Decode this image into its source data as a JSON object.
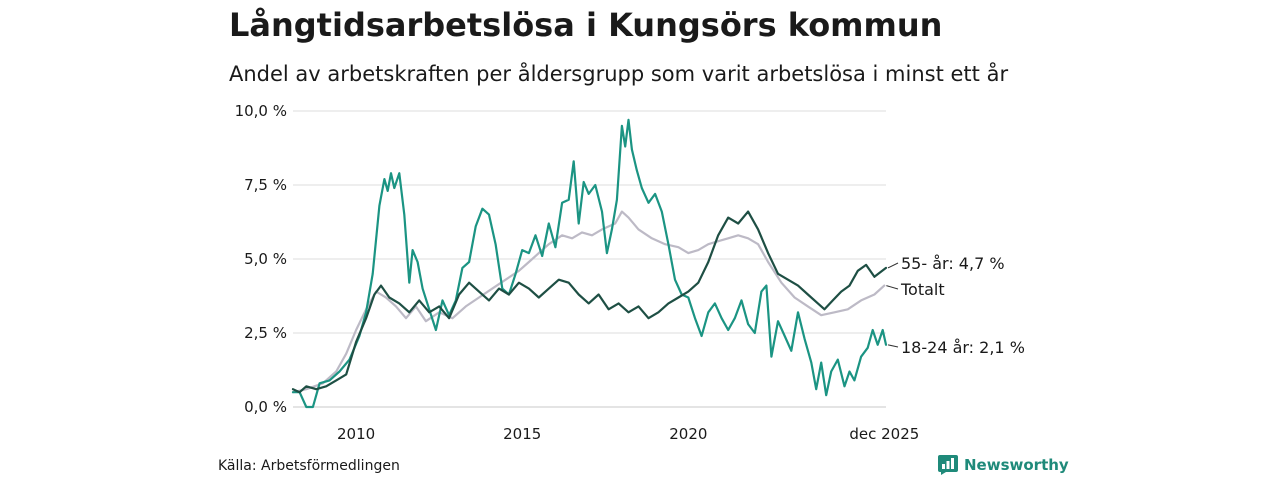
{
  "title": "Långtidsarbetslösa i Kungsörs kommun",
  "subtitle": "Andel av arbetskraften per åldersgrupp som varit arbetslösa i minst ett år",
  "source": "Källa: Arbetsförmedlingen",
  "brand": {
    "name": "Newsworthy",
    "icon": "newsworthy-logo-icon",
    "color": "#1f8a7a"
  },
  "chart_data": {
    "type": "line",
    "title": "Långtidsarbetslösa i Kungsörs kommun",
    "xlabel": "",
    "ylabel": "",
    "xlim": [
      2008.1,
      2025.95
    ],
    "ylim": [
      0,
      10
    ],
    "y_ticks": [
      {
        "value": 0,
        "label": "0,0 %"
      },
      {
        "value": 2.5,
        "label": "2,5 %"
      },
      {
        "value": 5,
        "label": "5,0 %"
      },
      {
        "value": 7.5,
        "label": "7,5 %"
      },
      {
        "value": 10,
        "label": "10,0 %"
      }
    ],
    "x_ticks": [
      {
        "value": 2010,
        "label": "2010"
      },
      {
        "value": 2015,
        "label": "2015"
      },
      {
        "value": 2020,
        "label": "2020"
      },
      {
        "value": 2025.9,
        "label": "dec 2025"
      }
    ],
    "grid": "horizontal",
    "series": [
      {
        "name": "Totalt",
        "label": "Totalt",
        "color": "#bdbac6",
        "points": [
          [
            2008.1,
            0.5
          ],
          [
            2008.5,
            0.6
          ],
          [
            2009.0,
            0.8
          ],
          [
            2009.4,
            1.2
          ],
          [
            2009.7,
            1.8
          ],
          [
            2010.0,
            2.6
          ],
          [
            2010.3,
            3.3
          ],
          [
            2010.6,
            3.9
          ],
          [
            2010.9,
            3.7
          ],
          [
            2011.2,
            3.4
          ],
          [
            2011.5,
            3.0
          ],
          [
            2011.8,
            3.4
          ],
          [
            2012.1,
            2.9
          ],
          [
            2012.5,
            3.2
          ],
          [
            2012.9,
            3.0
          ],
          [
            2013.3,
            3.4
          ],
          [
            2013.7,
            3.7
          ],
          [
            2014.1,
            4.0
          ],
          [
            2014.5,
            4.3
          ],
          [
            2014.9,
            4.6
          ],
          [
            2015.2,
            4.9
          ],
          [
            2015.5,
            5.2
          ],
          [
            2015.8,
            5.5
          ],
          [
            2016.2,
            5.8
          ],
          [
            2016.5,
            5.7
          ],
          [
            2016.8,
            5.9
          ],
          [
            2017.1,
            5.8
          ],
          [
            2017.4,
            6.0
          ],
          [
            2017.8,
            6.2
          ],
          [
            2018.0,
            6.6
          ],
          [
            2018.2,
            6.4
          ],
          [
            2018.5,
            6.0
          ],
          [
            2018.9,
            5.7
          ],
          [
            2019.3,
            5.5
          ],
          [
            2019.7,
            5.4
          ],
          [
            2020.0,
            5.2
          ],
          [
            2020.3,
            5.3
          ],
          [
            2020.6,
            5.5
          ],
          [
            2020.9,
            5.6
          ],
          [
            2021.2,
            5.7
          ],
          [
            2021.5,
            5.8
          ],
          [
            2021.8,
            5.7
          ],
          [
            2022.1,
            5.5
          ],
          [
            2022.4,
            4.9
          ],
          [
            2022.8,
            4.2
          ],
          [
            2023.2,
            3.7
          ],
          [
            2023.6,
            3.4
          ],
          [
            2024.0,
            3.1
          ],
          [
            2024.4,
            3.2
          ],
          [
            2024.8,
            3.3
          ],
          [
            2025.2,
            3.6
          ],
          [
            2025.6,
            3.8
          ],
          [
            2025.9,
            4.1
          ]
        ]
      },
      {
        "name": "18-24 år",
        "label": "18-24 år: 2,1 %",
        "color": "#1b9483",
        "points": [
          [
            2008.1,
            0.5
          ],
          [
            2008.3,
            0.5
          ],
          [
            2008.5,
            0.0
          ],
          [
            2008.7,
            0.0
          ],
          [
            2008.9,
            0.8
          ],
          [
            2009.2,
            0.9
          ],
          [
            2009.5,
            1.2
          ],
          [
            2009.8,
            1.6
          ],
          [
            2010.1,
            2.4
          ],
          [
            2010.3,
            3.2
          ],
          [
            2010.5,
            4.5
          ],
          [
            2010.7,
            6.8
          ],
          [
            2010.85,
            7.7
          ],
          [
            2010.95,
            7.3
          ],
          [
            2011.05,
            7.9
          ],
          [
            2011.15,
            7.4
          ],
          [
            2011.3,
            7.9
          ],
          [
            2011.45,
            6.5
          ],
          [
            2011.6,
            4.2
          ],
          [
            2011.7,
            5.3
          ],
          [
            2011.85,
            4.9
          ],
          [
            2012.0,
            4.0
          ],
          [
            2012.2,
            3.3
          ],
          [
            2012.4,
            2.6
          ],
          [
            2012.6,
            3.6
          ],
          [
            2012.8,
            3.1
          ],
          [
            2013.0,
            3.6
          ],
          [
            2013.2,
            4.7
          ],
          [
            2013.4,
            4.9
          ],
          [
            2013.6,
            6.1
          ],
          [
            2013.8,
            6.7
          ],
          [
            2014.0,
            6.5
          ],
          [
            2014.2,
            5.5
          ],
          [
            2014.4,
            4.0
          ],
          [
            2014.6,
            3.8
          ],
          [
            2014.8,
            4.5
          ],
          [
            2015.0,
            5.3
          ],
          [
            2015.2,
            5.2
          ],
          [
            2015.4,
            5.8
          ],
          [
            2015.6,
            5.1
          ],
          [
            2015.8,
            6.2
          ],
          [
            2016.0,
            5.4
          ],
          [
            2016.2,
            6.9
          ],
          [
            2016.4,
            7.0
          ],
          [
            2016.55,
            8.3
          ],
          [
            2016.7,
            6.2
          ],
          [
            2016.85,
            7.6
          ],
          [
            2017.0,
            7.2
          ],
          [
            2017.2,
            7.5
          ],
          [
            2017.4,
            6.6
          ],
          [
            2017.55,
            5.2
          ],
          [
            2017.7,
            6.0
          ],
          [
            2017.85,
            7.0
          ],
          [
            2018.0,
            9.5
          ],
          [
            2018.1,
            8.8
          ],
          [
            2018.2,
            9.7
          ],
          [
            2018.3,
            8.7
          ],
          [
            2018.45,
            8.0
          ],
          [
            2018.6,
            7.4
          ],
          [
            2018.8,
            6.9
          ],
          [
            2019.0,
            7.2
          ],
          [
            2019.2,
            6.6
          ],
          [
            2019.4,
            5.5
          ],
          [
            2019.6,
            4.3
          ],
          [
            2019.8,
            3.8
          ],
          [
            2020.0,
            3.7
          ],
          [
            2020.2,
            3.0
          ],
          [
            2020.4,
            2.4
          ],
          [
            2020.6,
            3.2
          ],
          [
            2020.8,
            3.5
          ],
          [
            2021.0,
            3.0
          ],
          [
            2021.2,
            2.6
          ],
          [
            2021.4,
            3.0
          ],
          [
            2021.6,
            3.6
          ],
          [
            2021.8,
            2.8
          ],
          [
            2022.0,
            2.5
          ],
          [
            2022.2,
            3.9
          ],
          [
            2022.35,
            4.1
          ],
          [
            2022.5,
            1.7
          ],
          [
            2022.7,
            2.9
          ],
          [
            2022.9,
            2.4
          ],
          [
            2023.1,
            1.9
          ],
          [
            2023.3,
            3.2
          ],
          [
            2023.5,
            2.3
          ],
          [
            2023.7,
            1.5
          ],
          [
            2023.85,
            0.6
          ],
          [
            2024.0,
            1.5
          ],
          [
            2024.15,
            0.4
          ],
          [
            2024.3,
            1.2
          ],
          [
            2024.5,
            1.6
          ],
          [
            2024.7,
            0.7
          ],
          [
            2024.85,
            1.2
          ],
          [
            2025.0,
            0.9
          ],
          [
            2025.2,
            1.7
          ],
          [
            2025.4,
            2.0
          ],
          [
            2025.55,
            2.6
          ],
          [
            2025.7,
            2.1
          ],
          [
            2025.85,
            2.6
          ],
          [
            2025.95,
            2.1
          ]
        ]
      },
      {
        "name": "55- år",
        "label": "55- år: 4,7 %",
        "color": "#1e4f44",
        "points": [
          [
            2008.1,
            0.6
          ],
          [
            2008.3,
            0.5
          ],
          [
            2008.5,
            0.7
          ],
          [
            2008.8,
            0.6
          ],
          [
            2009.1,
            0.7
          ],
          [
            2009.4,
            0.9
          ],
          [
            2009.7,
            1.1
          ],
          [
            2010.0,
            2.2
          ],
          [
            2010.3,
            3.0
          ],
          [
            2010.55,
            3.8
          ],
          [
            2010.75,
            4.1
          ],
          [
            2011.0,
            3.7
          ],
          [
            2011.3,
            3.5
          ],
          [
            2011.6,
            3.2
          ],
          [
            2011.9,
            3.6
          ],
          [
            2012.2,
            3.2
          ],
          [
            2012.5,
            3.4
          ],
          [
            2012.8,
            3.0
          ],
          [
            2013.1,
            3.8
          ],
          [
            2013.4,
            4.2
          ],
          [
            2013.7,
            3.9
          ],
          [
            2014.0,
            3.6
          ],
          [
            2014.3,
            4.0
          ],
          [
            2014.6,
            3.8
          ],
          [
            2014.9,
            4.2
          ],
          [
            2015.2,
            4.0
          ],
          [
            2015.5,
            3.7
          ],
          [
            2015.8,
            4.0
          ],
          [
            2016.1,
            4.3
          ],
          [
            2016.4,
            4.2
          ],
          [
            2016.7,
            3.8
          ],
          [
            2017.0,
            3.5
          ],
          [
            2017.3,
            3.8
          ],
          [
            2017.6,
            3.3
          ],
          [
            2017.9,
            3.5
          ],
          [
            2018.2,
            3.2
          ],
          [
            2018.5,
            3.4
          ],
          [
            2018.8,
            3.0
          ],
          [
            2019.1,
            3.2
          ],
          [
            2019.4,
            3.5
          ],
          [
            2019.7,
            3.7
          ],
          [
            2020.0,
            3.9
          ],
          [
            2020.3,
            4.2
          ],
          [
            2020.6,
            4.9
          ],
          [
            2020.9,
            5.8
          ],
          [
            2021.2,
            6.4
          ],
          [
            2021.5,
            6.2
          ],
          [
            2021.8,
            6.6
          ],
          [
            2022.1,
            6.0
          ],
          [
            2022.4,
            5.2
          ],
          [
            2022.7,
            4.5
          ],
          [
            2023.0,
            4.3
          ],
          [
            2023.3,
            4.1
          ],
          [
            2023.6,
            3.8
          ],
          [
            2023.9,
            3.5
          ],
          [
            2024.1,
            3.3
          ],
          [
            2024.35,
            3.6
          ],
          [
            2024.6,
            3.9
          ],
          [
            2024.85,
            4.1
          ],
          [
            2025.1,
            4.6
          ],
          [
            2025.35,
            4.8
          ],
          [
            2025.6,
            4.4
          ],
          [
            2025.95,
            4.7
          ]
        ]
      }
    ]
  }
}
